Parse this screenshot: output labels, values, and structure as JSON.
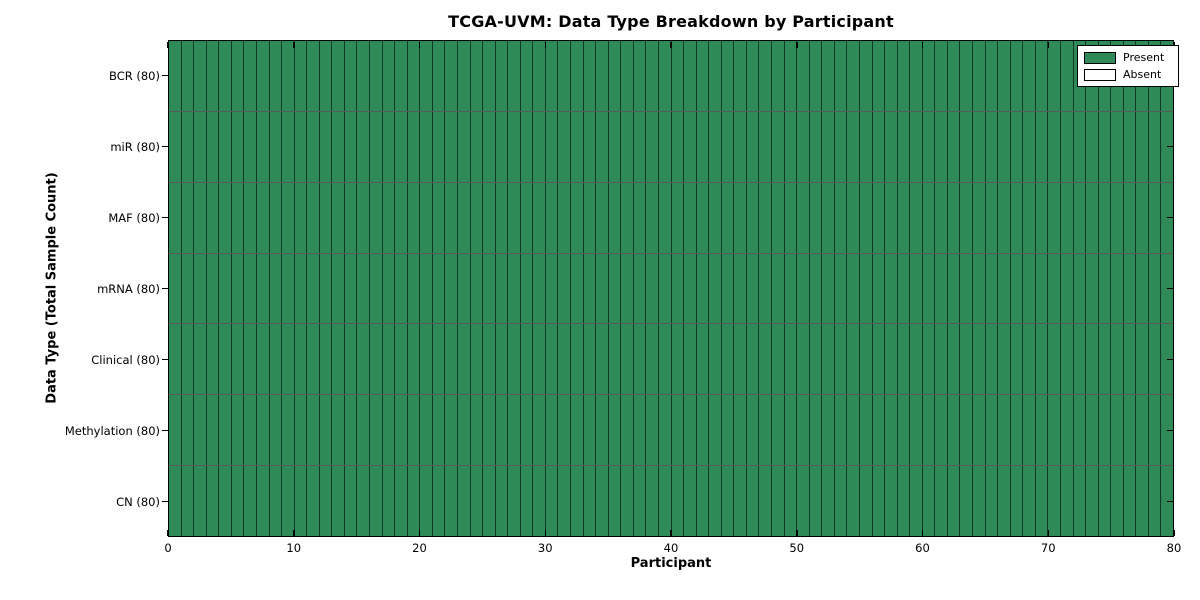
{
  "chart_data": {
    "type": "heatmap",
    "title": "TCGA-UVM: Data Type Breakdown by Participant",
    "xlabel": "Participant",
    "ylabel": "Data Type (Total Sample Count)",
    "x_range": [
      0,
      80
    ],
    "x_ticks": [
      0,
      10,
      20,
      30,
      40,
      50,
      60,
      70,
      80
    ],
    "n_participants": 80,
    "rows": [
      {
        "label": "BCR (80)",
        "data_type": "BCR",
        "total": 80,
        "present": 80,
        "absent": 0
      },
      {
        "label": "miR (80)",
        "data_type": "miR",
        "total": 80,
        "present": 80,
        "absent": 0
      },
      {
        "label": "MAF (80)",
        "data_type": "MAF",
        "total": 80,
        "present": 80,
        "absent": 0
      },
      {
        "label": "mRNA (80)",
        "data_type": "mRNA",
        "total": 80,
        "present": 80,
        "absent": 0
      },
      {
        "label": "Clinical (80)",
        "data_type": "Clinical",
        "total": 80,
        "present": 80,
        "absent": 0
      },
      {
        "label": "Methylation (80)",
        "data_type": "Methylation",
        "total": 80,
        "present": 80,
        "absent": 0
      },
      {
        "label": "CN (80)",
        "data_type": "CN",
        "total": 80,
        "present": 80,
        "absent": 0
      }
    ],
    "legend": [
      {
        "label": "Present",
        "color": "#2E8B57"
      },
      {
        "label": "Absent",
        "color": "#FFFFFF"
      }
    ],
    "legend_position": "upper right",
    "colors": {
      "present": "#2E8B57",
      "absent": "#FFFFFF",
      "cell_edge": "rgba(0,0,0,0.6)",
      "axis": "#000000",
      "background": "#FFFFFF"
    },
    "grid": true
  }
}
